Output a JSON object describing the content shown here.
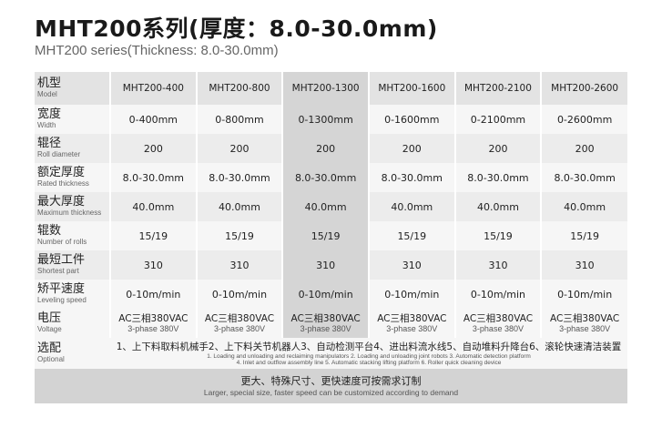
{
  "title": "MHT200系列(厚度：8.0-30.0mm)",
  "subtitle": "MHT200 series(Thickness: 8.0-30.0mm)",
  "highlight_color": "#d5d5d5",
  "table": {
    "header": {
      "cn": "机型",
      "en": "Model",
      "models": [
        "MHT200-400",
        "MHT200-800",
        "MHT200-1300",
        "MHT200-1600",
        "MHT200-2100",
        "MHT200-2600"
      ]
    },
    "rows": [
      {
        "cn": "宽度",
        "en": "Width",
        "values": [
          "0-400mm",
          "0-800mm",
          "0-1300mm",
          "0-1600mm",
          "0-2100mm",
          "0-2600mm"
        ]
      },
      {
        "cn": "辊径",
        "en": "Roll diameter",
        "values": [
          "200",
          "200",
          "200",
          "200",
          "200",
          "200"
        ]
      },
      {
        "cn": "额定厚度",
        "en": "Rated thickness",
        "values": [
          "8.0-30.0mm",
          "8.0-30.0mm",
          "8.0-30.0mm",
          "8.0-30.0mm",
          "8.0-30.0mm",
          "8.0-30.0mm"
        ]
      },
      {
        "cn": "最大厚度",
        "en": "Maximum thickness",
        "values": [
          "40.0mm",
          "40.0mm",
          "40.0mm",
          "40.0mm",
          "40.0mm",
          "40.0mm"
        ]
      },
      {
        "cn": "辊数",
        "en": "Number of rolls",
        "values": [
          "15/19",
          "15/19",
          "15/19",
          "15/19",
          "15/19",
          "15/19"
        ]
      },
      {
        "cn": "最短工件",
        "en": "Shortest part",
        "values": [
          "310",
          "310",
          "310",
          "310",
          "310",
          "310"
        ]
      },
      {
        "cn": "矫平速度",
        "en": "Leveling speed",
        "values": [
          "0-10m/min",
          "0-10m/min",
          "0-10m/min",
          "0-10m/min",
          "0-10m/min",
          "0-10m/min"
        ]
      }
    ],
    "voltage": {
      "cn": "电压",
      "en": "Voltage",
      "value_cn": "AC三相380VAC",
      "value_en": "3-phase 380V"
    },
    "optional": {
      "cn": "选配",
      "en": "Optional",
      "text_cn": "1、上下料取料机械手2、上下料关节机器人3、自动检测平台4、进出料流水线5、自动堆料升降台6、滚轮快速清洁装置",
      "text_en_1": "1. Loading and unloading and reclaiming manipulators 2. Loading and unloading joint robots 3. Automatic detection platform",
      "text_en_2": "4. Inlet and outflow assembly line 5. Automatic stacking lifting platform 6. Roller quick cleaning device"
    },
    "footer": {
      "cn": "更大、特殊尺寸、更快速度可按需求订制",
      "en": "Larger, special size, faster speed can be customized according to demand"
    }
  }
}
